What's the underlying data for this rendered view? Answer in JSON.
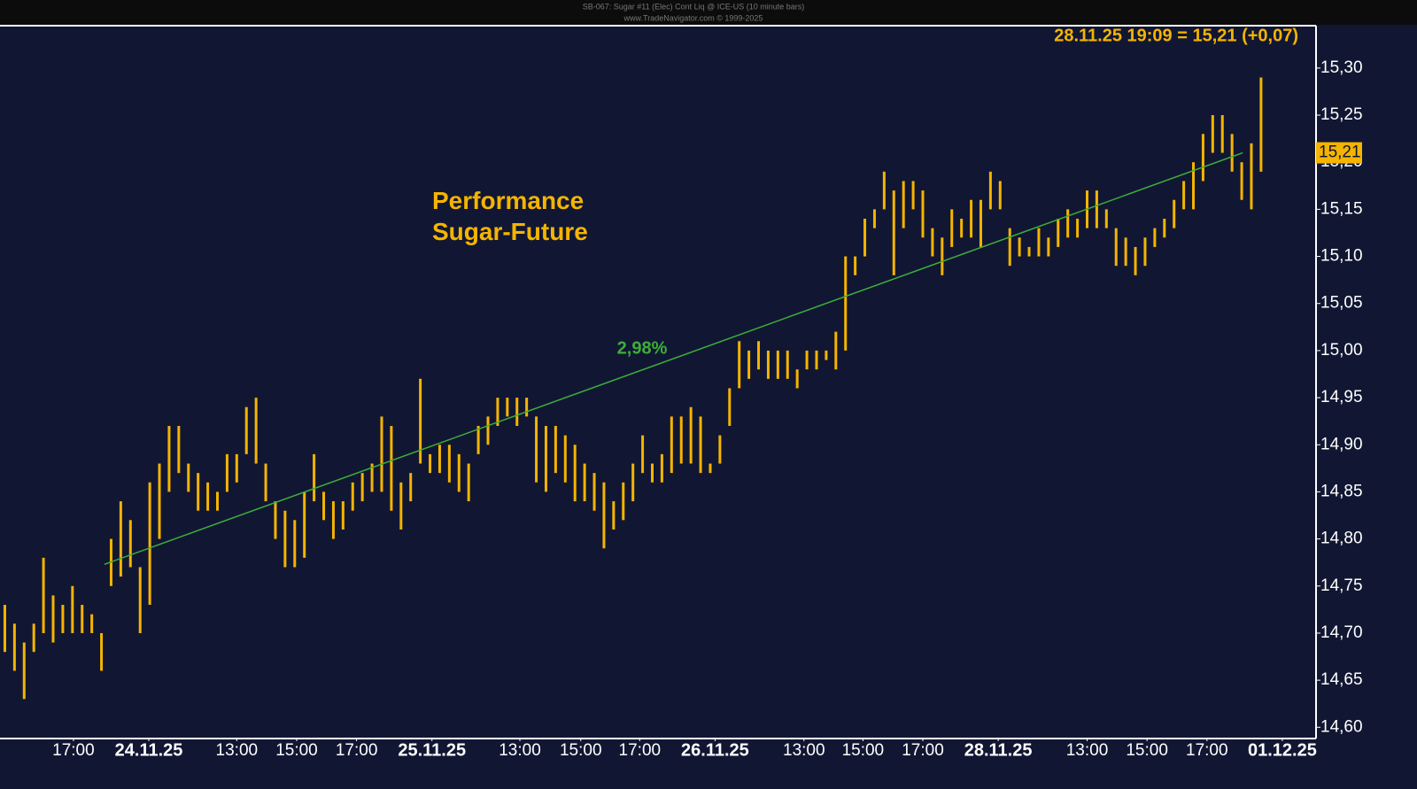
{
  "chart_data": {
    "type": "ohlc",
    "title": "SB-067:  Sugar #11 (Elec) Cont Liq @ ICE-US  (10 minute bars)",
    "subtitle": "www.TradeNavigator.com © 1999-2025",
    "annotation": "Performance\nSugar-Future",
    "last_price_text": "28.11.25 19:09 = 15,21 (+0,07)",
    "last_price": {
      "value": 15.21,
      "label": "15,21"
    },
    "color": "#f5b400",
    "trend": {
      "color": "#3dae3a",
      "label": "2,98%",
      "x": [
        10.3,
        128.1
      ],
      "values": [
        14.773,
        15.21
      ]
    },
    "xlim": [
      -0.5,
      135.6
    ],
    "ylim": [
      14.589,
      15.345
    ],
    "xticks": [
      {
        "value": 7.1,
        "label": "17:00"
      },
      {
        "value": 14.9,
        "label": "24.11.25"
      },
      {
        "value": 24.0,
        "label": "13:00"
      },
      {
        "value": 30.2,
        "label": "15:00"
      },
      {
        "value": 36.4,
        "label": "17:00"
      },
      {
        "value": 44.2,
        "label": "25.11.25"
      },
      {
        "value": 53.3,
        "label": "13:00"
      },
      {
        "value": 59.6,
        "label": "15:00"
      },
      {
        "value": 65.7,
        "label": "17:00"
      },
      {
        "value": 73.5,
        "label": "26.11.25"
      },
      {
        "value": 82.7,
        "label": "13:00"
      },
      {
        "value": 88.8,
        "label": "15:00"
      },
      {
        "value": 95.0,
        "label": "17:00"
      },
      {
        "value": 102.8,
        "label": "28.11.25"
      },
      {
        "value": 112.0,
        "label": "13:00"
      },
      {
        "value": 118.2,
        "label": "15:00"
      },
      {
        "value": 124.4,
        "label": "17:00"
      },
      {
        "value": 132.2,
        "label": "01.12.25"
      }
    ],
    "yticks": [
      {
        "value": 14.6,
        "label": "14,60"
      },
      {
        "value": 14.65,
        "label": "14,65"
      },
      {
        "value": 14.7,
        "label": "14,70"
      },
      {
        "value": 14.75,
        "label": "14,75"
      },
      {
        "value": 14.8,
        "label": "14,80"
      },
      {
        "value": 14.85,
        "label": "14,85"
      },
      {
        "value": 14.9,
        "label": "14,90"
      },
      {
        "value": 14.95,
        "label": "14,95"
      },
      {
        "value": 15.0,
        "label": "15,00"
      },
      {
        "value": 15.05,
        "label": "15,05"
      },
      {
        "value": 15.1,
        "label": "15,10"
      },
      {
        "value": 15.15,
        "label": "15,15"
      },
      {
        "value": 15.2,
        "label": "15,20"
      },
      {
        "value": 15.25,
        "label": "15,25"
      },
      {
        "value": 15.3,
        "label": "15,30"
      }
    ],
    "high": [
      14.73,
      14.71,
      14.69,
      14.71,
      14.78,
      14.74,
      14.73,
      14.75,
      14.73,
      14.72,
      14.7,
      14.8,
      14.84,
      14.82,
      14.77,
      14.86,
      14.88,
      14.92,
      14.92,
      14.88,
      14.87,
      14.86,
      14.85,
      14.89,
      14.89,
      14.94,
      14.95,
      14.88,
      14.84,
      14.83,
      14.82,
      14.85,
      14.89,
      14.85,
      14.84,
      14.84,
      14.86,
      14.87,
      14.88,
      14.93,
      14.92,
      14.86,
      14.87,
      14.97,
      14.89,
      14.9,
      14.9,
      14.89,
      14.88,
      14.92,
      14.93,
      14.95,
      14.95,
      14.95,
      14.95,
      14.93,
      14.92,
      14.92,
      14.91,
      14.9,
      14.88,
      14.87,
      14.86,
      14.84,
      14.86,
      14.88,
      14.91,
      14.88,
      14.89,
      14.93,
      14.93,
      14.94,
      14.93,
      14.88,
      14.91,
      14.96,
      15.01,
      15.0,
      15.01,
      15.0,
      15.0,
      15.0,
      14.98,
      15.0,
      15.0,
      15.0,
      15.02,
      15.1,
      15.1,
      15.14,
      15.15,
      15.19,
      15.17,
      15.18,
      15.18,
      15.17,
      15.13,
      15.12,
      15.15,
      15.14,
      15.16,
      15.16,
      15.19,
      15.18,
      15.13,
      15.12,
      15.11,
      15.13,
      15.12,
      15.14,
      15.15,
      15.14,
      15.17,
      15.17,
      15.15,
      15.13,
      15.12,
      15.11,
      15.12,
      15.13,
      15.14,
      15.16,
      15.18,
      15.2,
      15.23,
      15.25,
      15.25,
      15.23,
      15.2,
      15.22,
      15.29
    ],
    "low": [
      14.68,
      14.66,
      14.63,
      14.68,
      14.7,
      14.69,
      14.7,
      14.7,
      14.7,
      14.7,
      14.66,
      14.75,
      14.76,
      14.77,
      14.7,
      14.73,
      14.8,
      14.85,
      14.87,
      14.85,
      14.83,
      14.83,
      14.83,
      14.85,
      14.86,
      14.89,
      14.88,
      14.84,
      14.8,
      14.77,
      14.77,
      14.78,
      14.84,
      14.82,
      14.8,
      14.81,
      14.83,
      14.84,
      14.85,
      14.85,
      14.83,
      14.81,
      14.84,
      14.88,
      14.87,
      14.87,
      14.86,
      14.85,
      14.84,
      14.89,
      14.9,
      14.92,
      14.93,
      14.92,
      14.93,
      14.86,
      14.85,
      14.87,
      14.86,
      14.84,
      14.84,
      14.83,
      14.79,
      14.81,
      14.82,
      14.84,
      14.87,
      14.86,
      14.86,
      14.87,
      14.88,
      14.88,
      14.87,
      14.87,
      14.88,
      14.92,
      14.96,
      14.97,
      14.98,
      14.97,
      14.97,
      14.97,
      14.96,
      14.98,
      14.98,
      14.99,
      14.98,
      15.0,
      15.08,
      15.1,
      15.13,
      15.15,
      15.08,
      15.13,
      15.15,
      15.12,
      15.1,
      15.08,
      15.11,
      15.12,
      15.12,
      15.11,
      15.15,
      15.15,
      15.09,
      15.1,
      15.1,
      15.1,
      15.1,
      15.11,
      15.12,
      15.12,
      15.13,
      15.13,
      15.13,
      15.09,
      15.09,
      15.08,
      15.09,
      15.11,
      15.12,
      15.13,
      15.15,
      15.15,
      15.18,
      15.21,
      15.21,
      15.19,
      15.16,
      15.15,
      15.19
    ]
  }
}
